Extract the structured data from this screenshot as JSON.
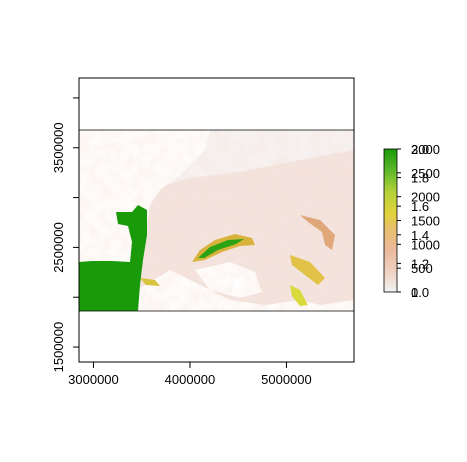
{
  "chart_data": {
    "type": "heatmap",
    "title": "",
    "xlabel": "",
    "ylabel": "",
    "xlim": [
      2850000,
      5700000
    ],
    "ylim": [
      1350000,
      4200000
    ],
    "raster_extent": {
      "x": [
        2850000,
        5700000
      ],
      "y": [
        1950000,
        3800000
      ]
    },
    "grid": false,
    "x_ticks": [
      {
        "value": 3000000,
        "label": "3000000"
      },
      {
        "value": 4000000,
        "label": "4000000"
      },
      {
        "value": 5000000,
        "label": "5000000"
      }
    ],
    "y_ticks": [
      {
        "value": 1500000,
        "label": "1500000"
      },
      {
        "value": 2000000,
        "label": ""
      },
      {
        "value": 2500000,
        "label": "2500000"
      },
      {
        "value": 3000000,
        "label": ""
      },
      {
        "value": 3500000,
        "label": "3500000"
      },
      {
        "value": 4000000,
        "label": ""
      }
    ],
    "legend": {
      "placement": "right",
      "overlaid_scales": [
        {
          "min": 0,
          "max": 3000,
          "ticks": [
            {
              "value": 0,
              "label": "0"
            },
            {
              "value": 500,
              "label": "500"
            },
            {
              "value": 1000,
              "label": "1000"
            },
            {
              "value": 1500,
              "label": "1500"
            },
            {
              "value": 2000,
              "label": "2000"
            },
            {
              "value": 2500,
              "label": "2500"
            },
            {
              "value": 3000,
              "label": "3000"
            }
          ]
        },
        {
          "min": 1.0,
          "max": 2.0,
          "ticks": [
            {
              "value": 1.0,
              "label": "1.0"
            },
            {
              "value": 1.2,
              "label": "1.2"
            },
            {
              "value": 1.4,
              "label": "1.4"
            },
            {
              "value": 1.6,
              "label": "1.6"
            },
            {
              "value": 1.8,
              "label": "1.8"
            },
            {
              "value": 2.0,
              "label": "2.0"
            }
          ]
        }
      ]
    },
    "colors": {
      "low": "#f2f2f2",
      "mid_low": "#ecb89a",
      "mid": "#e8c332",
      "high": "#1a9a0a",
      "water": "#ffffff"
    }
  }
}
